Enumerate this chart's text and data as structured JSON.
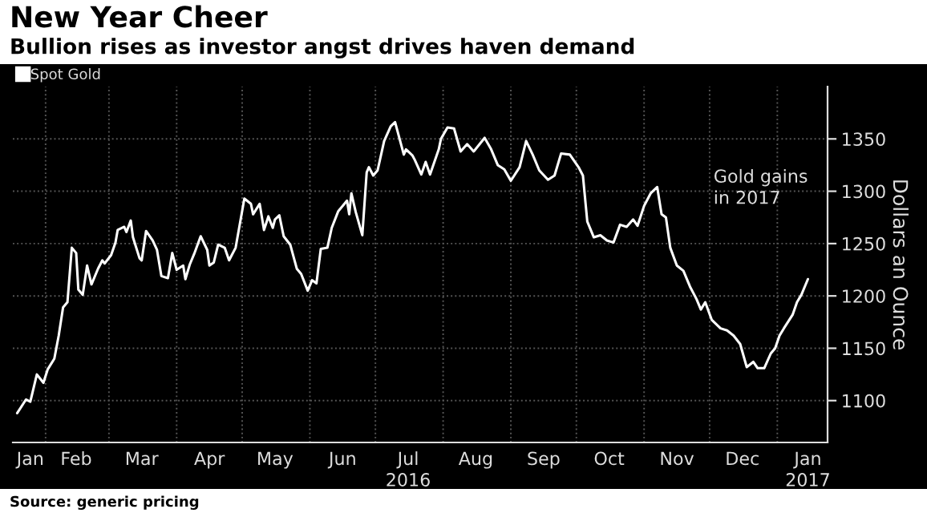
{
  "chart_data": {
    "type": "line",
    "title": "New Year Cheer",
    "subtitle": "Bullion rises as investor angst drives haven demand",
    "ylabel": "Dollars an Ounce",
    "annotations": [
      "Gold gains\nin 2017",
      "Source: generic pricing"
    ],
    "legend": "top left",
    "grid": true,
    "xlim": [
      "2016-01-17",
      "2017-01-24"
    ],
    "xticks": [
      {
        "value": "2016-01-25",
        "label": "Jan"
      },
      {
        "value": "2016-02-15",
        "label": "Feb"
      },
      {
        "value": "2016-03-16",
        "label": "Mar"
      },
      {
        "value": "2016-04-16",
        "label": "Apr"
      },
      {
        "value": "2016-05-16",
        "label": "May"
      },
      {
        "value": "2016-06-16",
        "label": "Jun"
      },
      {
        "value": "2016-07-16",
        "label": "Jul\n2016"
      },
      {
        "value": "2016-08-16",
        "label": "Aug"
      },
      {
        "value": "2016-09-16",
        "label": "Sep"
      },
      {
        "value": "2016-10-16",
        "label": "Oct"
      },
      {
        "value": "2016-11-16",
        "label": "Nov"
      },
      {
        "value": "2016-12-16",
        "label": "Dec"
      },
      {
        "value": "2017-01-15",
        "label": "Jan\n2017"
      },
      {
        "value": "2016-02-01",
        "label": null
      },
      {
        "value": "2016-03-01",
        "label": null
      },
      {
        "value": "2016-04-01",
        "label": null
      },
      {
        "value": "2016-05-01",
        "label": null
      },
      {
        "value": "2016-06-01",
        "label": null
      },
      {
        "value": "2016-07-01",
        "label": null
      },
      {
        "value": "2016-08-01",
        "label": null
      },
      {
        "value": "2016-09-01",
        "label": null
      },
      {
        "value": "2016-10-01",
        "label": null
      },
      {
        "value": "2016-11-01",
        "label": null
      },
      {
        "value": "2016-12-01",
        "label": null
      },
      {
        "value": "2017-01-01",
        "label": null
      }
    ],
    "ylim": [
      1060,
      1400
    ],
    "yticks": [
      1100,
      1150,
      1200,
      1250,
      1300,
      1350
    ],
    "series": [
      {
        "name": "Spot Gold",
        "color": "#ffffff",
        "x": [
          "2016-01-19",
          "2016-01-23",
          "2016-01-25",
          "2016-01-28",
          "2016-01-31",
          "2016-02-02",
          "2016-02-05",
          "2016-02-07",
          "2016-02-09",
          "2016-02-11",
          "2016-02-13",
          "2016-02-15",
          "2016-02-16",
          "2016-02-18",
          "2016-02-20",
          "2016-02-22",
          "2016-02-25",
          "2016-02-27",
          "2016-02-28",
          "2016-03-02",
          "2016-03-04",
          "2016-03-05",
          "2016-03-08",
          "2016-03-09",
          "2016-03-11",
          "2016-03-12",
          "2016-03-15",
          "2016-03-16",
          "2016-03-18",
          "2016-03-21",
          "2016-03-23",
          "2016-03-25",
          "2016-03-28",
          "2016-03-30",
          "2016-04-01",
          "2016-04-04",
          "2016-04-05",
          "2016-04-07",
          "2016-04-09",
          "2016-04-12",
          "2016-04-15",
          "2016-04-16",
          "2016-04-18",
          "2016-04-20",
          "2016-04-23",
          "2016-04-25",
          "2016-04-28",
          "2016-05-02",
          "2016-05-05",
          "2016-05-06",
          "2016-05-09",
          "2016-05-11",
          "2016-05-13",
          "2016-05-15",
          "2016-05-16",
          "2016-05-18",
          "2016-05-20",
          "2016-05-23",
          "2016-05-26",
          "2016-05-28",
          "2016-05-31",
          "2016-06-02",
          "2016-06-04",
          "2016-06-06",
          "2016-06-09",
          "2016-06-11",
          "2016-06-14",
          "2016-06-18",
          "2016-06-19",
          "2016-06-20",
          "2016-06-22",
          "2016-06-25",
          "2016-06-27",
          "2016-06-28",
          "2016-06-30",
          "2016-07-02",
          "2016-07-05",
          "2016-07-08",
          "2016-07-10",
          "2016-07-14",
          "2016-07-15",
          "2016-07-18",
          "2016-07-19",
          "2016-07-22",
          "2016-07-24",
          "2016-07-26",
          "2016-07-30",
          "2016-07-31",
          "2016-08-03",
          "2016-08-06",
          "2016-08-09",
          "2016-08-12",
          "2016-08-15",
          "2016-08-20",
          "2016-08-23",
          "2016-08-26",
          "2016-08-29",
          "2016-09-01",
          "2016-09-05",
          "2016-09-08",
          "2016-09-11",
          "2016-09-14",
          "2016-09-18",
          "2016-09-21",
          "2016-09-24",
          "2016-09-28",
          "2016-10-02",
          "2016-10-04",
          "2016-10-06",
          "2016-10-09",
          "2016-10-12",
          "2016-10-15",
          "2016-10-18",
          "2016-10-21",
          "2016-10-24",
          "2016-10-27",
          "2016-10-29",
          "2016-11-01",
          "2016-11-04",
          "2016-11-07",
          "2016-11-09",
          "2016-11-11",
          "2016-11-13",
          "2016-11-16",
          "2016-11-19",
          "2016-11-22",
          "2016-11-25",
          "2016-11-27",
          "2016-11-29",
          "2016-12-02",
          "2016-12-06",
          "2016-12-09",
          "2016-12-12",
          "2016-12-15",
          "2016-12-18",
          "2016-12-21",
          "2016-12-23",
          "2016-12-26",
          "2016-12-29",
          "2016-12-31",
          "2017-01-02",
          "2017-01-04",
          "2017-01-08",
          "2017-01-10",
          "2017-01-12",
          "2017-01-15"
        ],
        "values": [
          1088,
          1101,
          1099,
          1125,
          1117,
          1130,
          1140,
          1162,
          1189,
          1194,
          1246,
          1241,
          1206,
          1201,
          1229,
          1211,
          1226,
          1234,
          1231,
          1239,
          1251,
          1263,
          1266,
          1261,
          1272,
          1256,
          1236,
          1234,
          1262,
          1253,
          1244,
          1219,
          1217,
          1241,
          1225,
          1229,
          1216,
          1230,
          1240,
          1257,
          1244,
          1229,
          1232,
          1249,
          1246,
          1234,
          1246,
          1293,
          1288,
          1278,
          1288,
          1263,
          1276,
          1265,
          1273,
          1277,
          1257,
          1249,
          1226,
          1221,
          1205,
          1215,
          1212,
          1245,
          1246,
          1265,
          1281,
          1291,
          1278,
          1298,
          1280,
          1258,
          1318,
          1323,
          1315,
          1320,
          1348,
          1362,
          1366,
          1335,
          1340,
          1334,
          1330,
          1316,
          1328,
          1316,
          1340,
          1350,
          1361,
          1360,
          1338,
          1345,
          1338,
          1351,
          1340,
          1325,
          1321,
          1310,
          1323,
          1348,
          1335,
          1320,
          1311,
          1315,
          1336,
          1335,
          1323,
          1315,
          1271,
          1256,
          1258,
          1253,
          1251,
          1268,
          1266,
          1273,
          1267,
          1286,
          1298,
          1304,
          1278,
          1275,
          1246,
          1229,
          1224,
          1209,
          1197,
          1187,
          1194,
          1177,
          1169,
          1167,
          1162,
          1154,
          1132,
          1137,
          1131,
          1131,
          1145,
          1150,
          1162,
          1169,
          1182,
          1194,
          1201,
          1216
        ]
      }
    ]
  }
}
